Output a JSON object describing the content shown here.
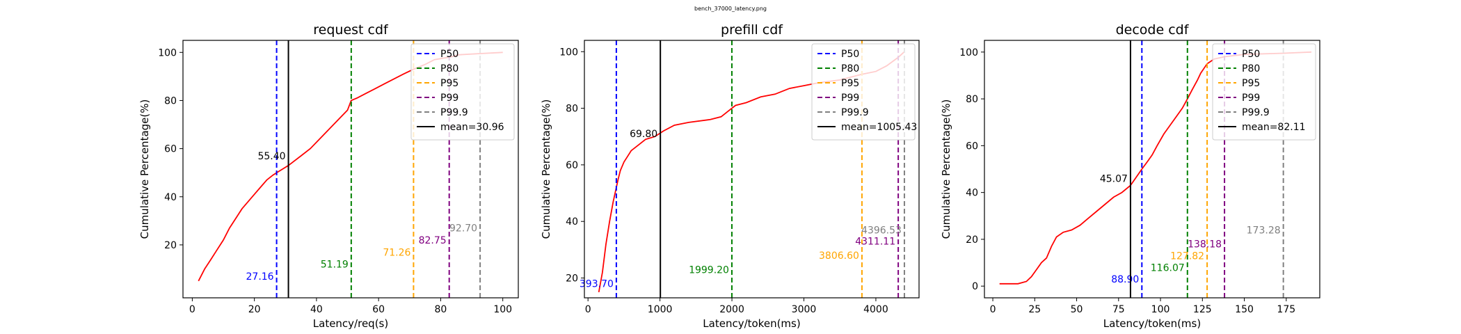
{
  "figure_title": "bench_37000_latency.png",
  "chart_data": [
    {
      "type": "line",
      "title": "request cdf",
      "xlabel": "Latency/req(s)",
      "ylabel": "Cumulative Percentage(%)",
      "xlim": [
        -3,
        105
      ],
      "ylim": [
        -2,
        105
      ],
      "xticks": [
        0,
        20,
        40,
        60,
        80,
        100
      ],
      "yticks": [
        20,
        40,
        60,
        80,
        100
      ],
      "grid": false,
      "legend_position": "upper right",
      "series": [
        {
          "name": "cdf",
          "color": "#ff0000",
          "points": [
            [
              2,
              5
            ],
            [
              4,
              10
            ],
            [
              6,
              14
            ],
            [
              8,
              18
            ],
            [
              10,
              22
            ],
            [
              12,
              27
            ],
            [
              14,
              31
            ],
            [
              16,
              35
            ],
            [
              18,
              38
            ],
            [
              20,
              41
            ],
            [
              22,
              44
            ],
            [
              24,
              47
            ],
            [
              26,
              49
            ],
            [
              27.16,
              50
            ],
            [
              30.96,
              53
            ],
            [
              35,
              57
            ],
            [
              38,
              60
            ],
            [
              41,
              64
            ],
            [
              44,
              68
            ],
            [
              47,
              72
            ],
            [
              50,
              76
            ],
            [
              51.19,
              80
            ],
            [
              53,
              81
            ],
            [
              56,
              83
            ],
            [
              59,
              85
            ],
            [
              62,
              87
            ],
            [
              65,
              89
            ],
            [
              68,
              91
            ],
            [
              71.26,
              93
            ],
            [
              75,
              95
            ],
            [
              78,
              97
            ],
            [
              82.75,
              98
            ],
            [
              86,
              99
            ],
            [
              92.7,
              99.5
            ],
            [
              100,
              100
            ]
          ]
        }
      ],
      "percentiles": [
        {
          "label": "P50",
          "value": 27.16,
          "color": "#0000ff",
          "text_y": 7
        },
        {
          "label": "P80",
          "value": 51.19,
          "color": "#008000",
          "text_y": 12
        },
        {
          "label": "P95",
          "value": 71.26,
          "color": "#ffa500",
          "text_y": 17
        },
        {
          "label": "P99",
          "value": 82.75,
          "color": "#800080",
          "text_y": 22
        },
        {
          "label": "P99.9",
          "value": 92.7,
          "color": "#808080",
          "text_y": 27
        }
      ],
      "mean": {
        "label": "mean=30.96",
        "value": 30.96,
        "annotation": "55.40",
        "annotation_y": 57
      },
      "annotations": [
        "27.16",
        "51.19",
        "71.26",
        "82.75",
        "92.70"
      ]
    },
    {
      "type": "line",
      "title": "prefill cdf",
      "xlabel": "Latency/token(ms)",
      "ylabel": "Cumulative Percentage(%)",
      "xlim": [
        -50,
        4600
      ],
      "ylim": [
        13,
        104
      ],
      "xticks": [
        0,
        1000,
        2000,
        3000,
        4000
      ],
      "yticks": [
        20,
        40,
        60,
        80,
        100
      ],
      "grid": false,
      "legend_position": "upper right",
      "series": [
        {
          "name": "cdf",
          "color": "#ff0000",
          "points": [
            [
              150,
              15
            ],
            [
              200,
              22
            ],
            [
              250,
              32
            ],
            [
              300,
              40
            ],
            [
              350,
              47
            ],
            [
              393.7,
              52
            ],
            [
              420,
              55
            ],
            [
              450,
              58
            ],
            [
              500,
              61
            ],
            [
              550,
              63
            ],
            [
              600,
              65
            ],
            [
              700,
              67
            ],
            [
              800,
              69
            ],
            [
              930,
              70
            ],
            [
              1050,
              72
            ],
            [
              1200,
              74
            ],
            [
              1400,
              75
            ],
            [
              1700,
              76
            ],
            [
              1850,
              77
            ],
            [
              1950,
              79
            ],
            [
              2050,
              81
            ],
            [
              2200,
              82
            ],
            [
              2400,
              84
            ],
            [
              2600,
              85
            ],
            [
              2800,
              87
            ],
            [
              3000,
              88
            ],
            [
              3200,
              89
            ],
            [
              3500,
              90
            ],
            [
              3806.6,
              92
            ],
            [
              4000,
              93
            ],
            [
              4150,
              95
            ],
            [
              4311.11,
              98
            ],
            [
              4396.53,
              100
            ]
          ]
        }
      ],
      "percentiles": [
        {
          "label": "P50",
          "value": 393.7,
          "color": "#0000ff",
          "text_y": 18
        },
        {
          "label": "P80",
          "value": 1999.2,
          "color": "#008000",
          "text_y": 23
        },
        {
          "label": "P95",
          "value": 3806.6,
          "color": "#ffa500",
          "text_y": 28
        },
        {
          "label": "P99",
          "value": 4311.11,
          "color": "#800080",
          "text_y": 33
        },
        {
          "label": "P99.9",
          "value": 4396.53,
          "color": "#808080",
          "text_y": 37
        }
      ],
      "mean": {
        "label": "mean=1005.43",
        "value": 1005.43,
        "annotation": "69.80",
        "annotation_y": 71
      },
      "annotations": [
        "393.70",
        "1999.20",
        "3806.60",
        "4311.11",
        "4396.53"
      ]
    },
    {
      "type": "line",
      "title": "decode cdf",
      "xlabel": "Latency/token(ms)",
      "ylabel": "Cumulative Percentage(%)",
      "xlim": [
        -5,
        195
      ],
      "ylim": [
        -5,
        105
      ],
      "xticks": [
        0,
        25,
        50,
        75,
        100,
        125,
        150,
        175
      ],
      "yticks": [
        0,
        20,
        40,
        60,
        80,
        100
      ],
      "grid": false,
      "legend_position": "upper right",
      "series": [
        {
          "name": "cdf",
          "color": "#ff0000",
          "points": [
            [
              4,
              1
            ],
            [
              10,
              1
            ],
            [
              15,
              1
            ],
            [
              20,
              2
            ],
            [
              23,
              4
            ],
            [
              26,
              7
            ],
            [
              29,
              10
            ],
            [
              32,
              12
            ],
            [
              35,
              17
            ],
            [
              38,
              21
            ],
            [
              42,
              23
            ],
            [
              47,
              24
            ],
            [
              52,
              26
            ],
            [
              57,
              29
            ],
            [
              62,
              32
            ],
            [
              67,
              35
            ],
            [
              72,
              38
            ],
            [
              77,
              40
            ],
            [
              82.11,
              43
            ],
            [
              85,
              46
            ],
            [
              88.9,
              50
            ],
            [
              92,
              53
            ],
            [
              95,
              56
            ],
            [
              98,
              60
            ],
            [
              102,
              65
            ],
            [
              106,
              69
            ],
            [
              110,
              73
            ],
            [
              113,
              76
            ],
            [
              116.07,
              80
            ],
            [
              119,
              84
            ],
            [
              122,
              88
            ],
            [
              124,
              91
            ],
            [
              127.82,
              95
            ],
            [
              132,
              97
            ],
            [
              138.18,
              98
            ],
            [
              150,
              99
            ],
            [
              173.28,
              99.5
            ],
            [
              190,
              100
            ]
          ]
        }
      ],
      "percentiles": [
        {
          "label": "P50",
          "value": 88.9,
          "color": "#0000ff",
          "text_y": 3
        },
        {
          "label": "P80",
          "value": 116.07,
          "color": "#008000",
          "text_y": 8
        },
        {
          "label": "P95",
          "value": 127.82,
          "color": "#ffa500",
          "text_y": 13
        },
        {
          "label": "P99",
          "value": 138.18,
          "color": "#800080",
          "text_y": 18
        },
        {
          "label": "P99.9",
          "value": 173.28,
          "color": "#808080",
          "text_y": 24
        }
      ],
      "mean": {
        "label": "mean=82.11",
        "value": 82.11,
        "annotation": "45.07",
        "annotation_y": 46
      },
      "annotations": [
        "88.90",
        "116.07",
        "127.82",
        "138.18",
        "173.28"
      ]
    }
  ]
}
